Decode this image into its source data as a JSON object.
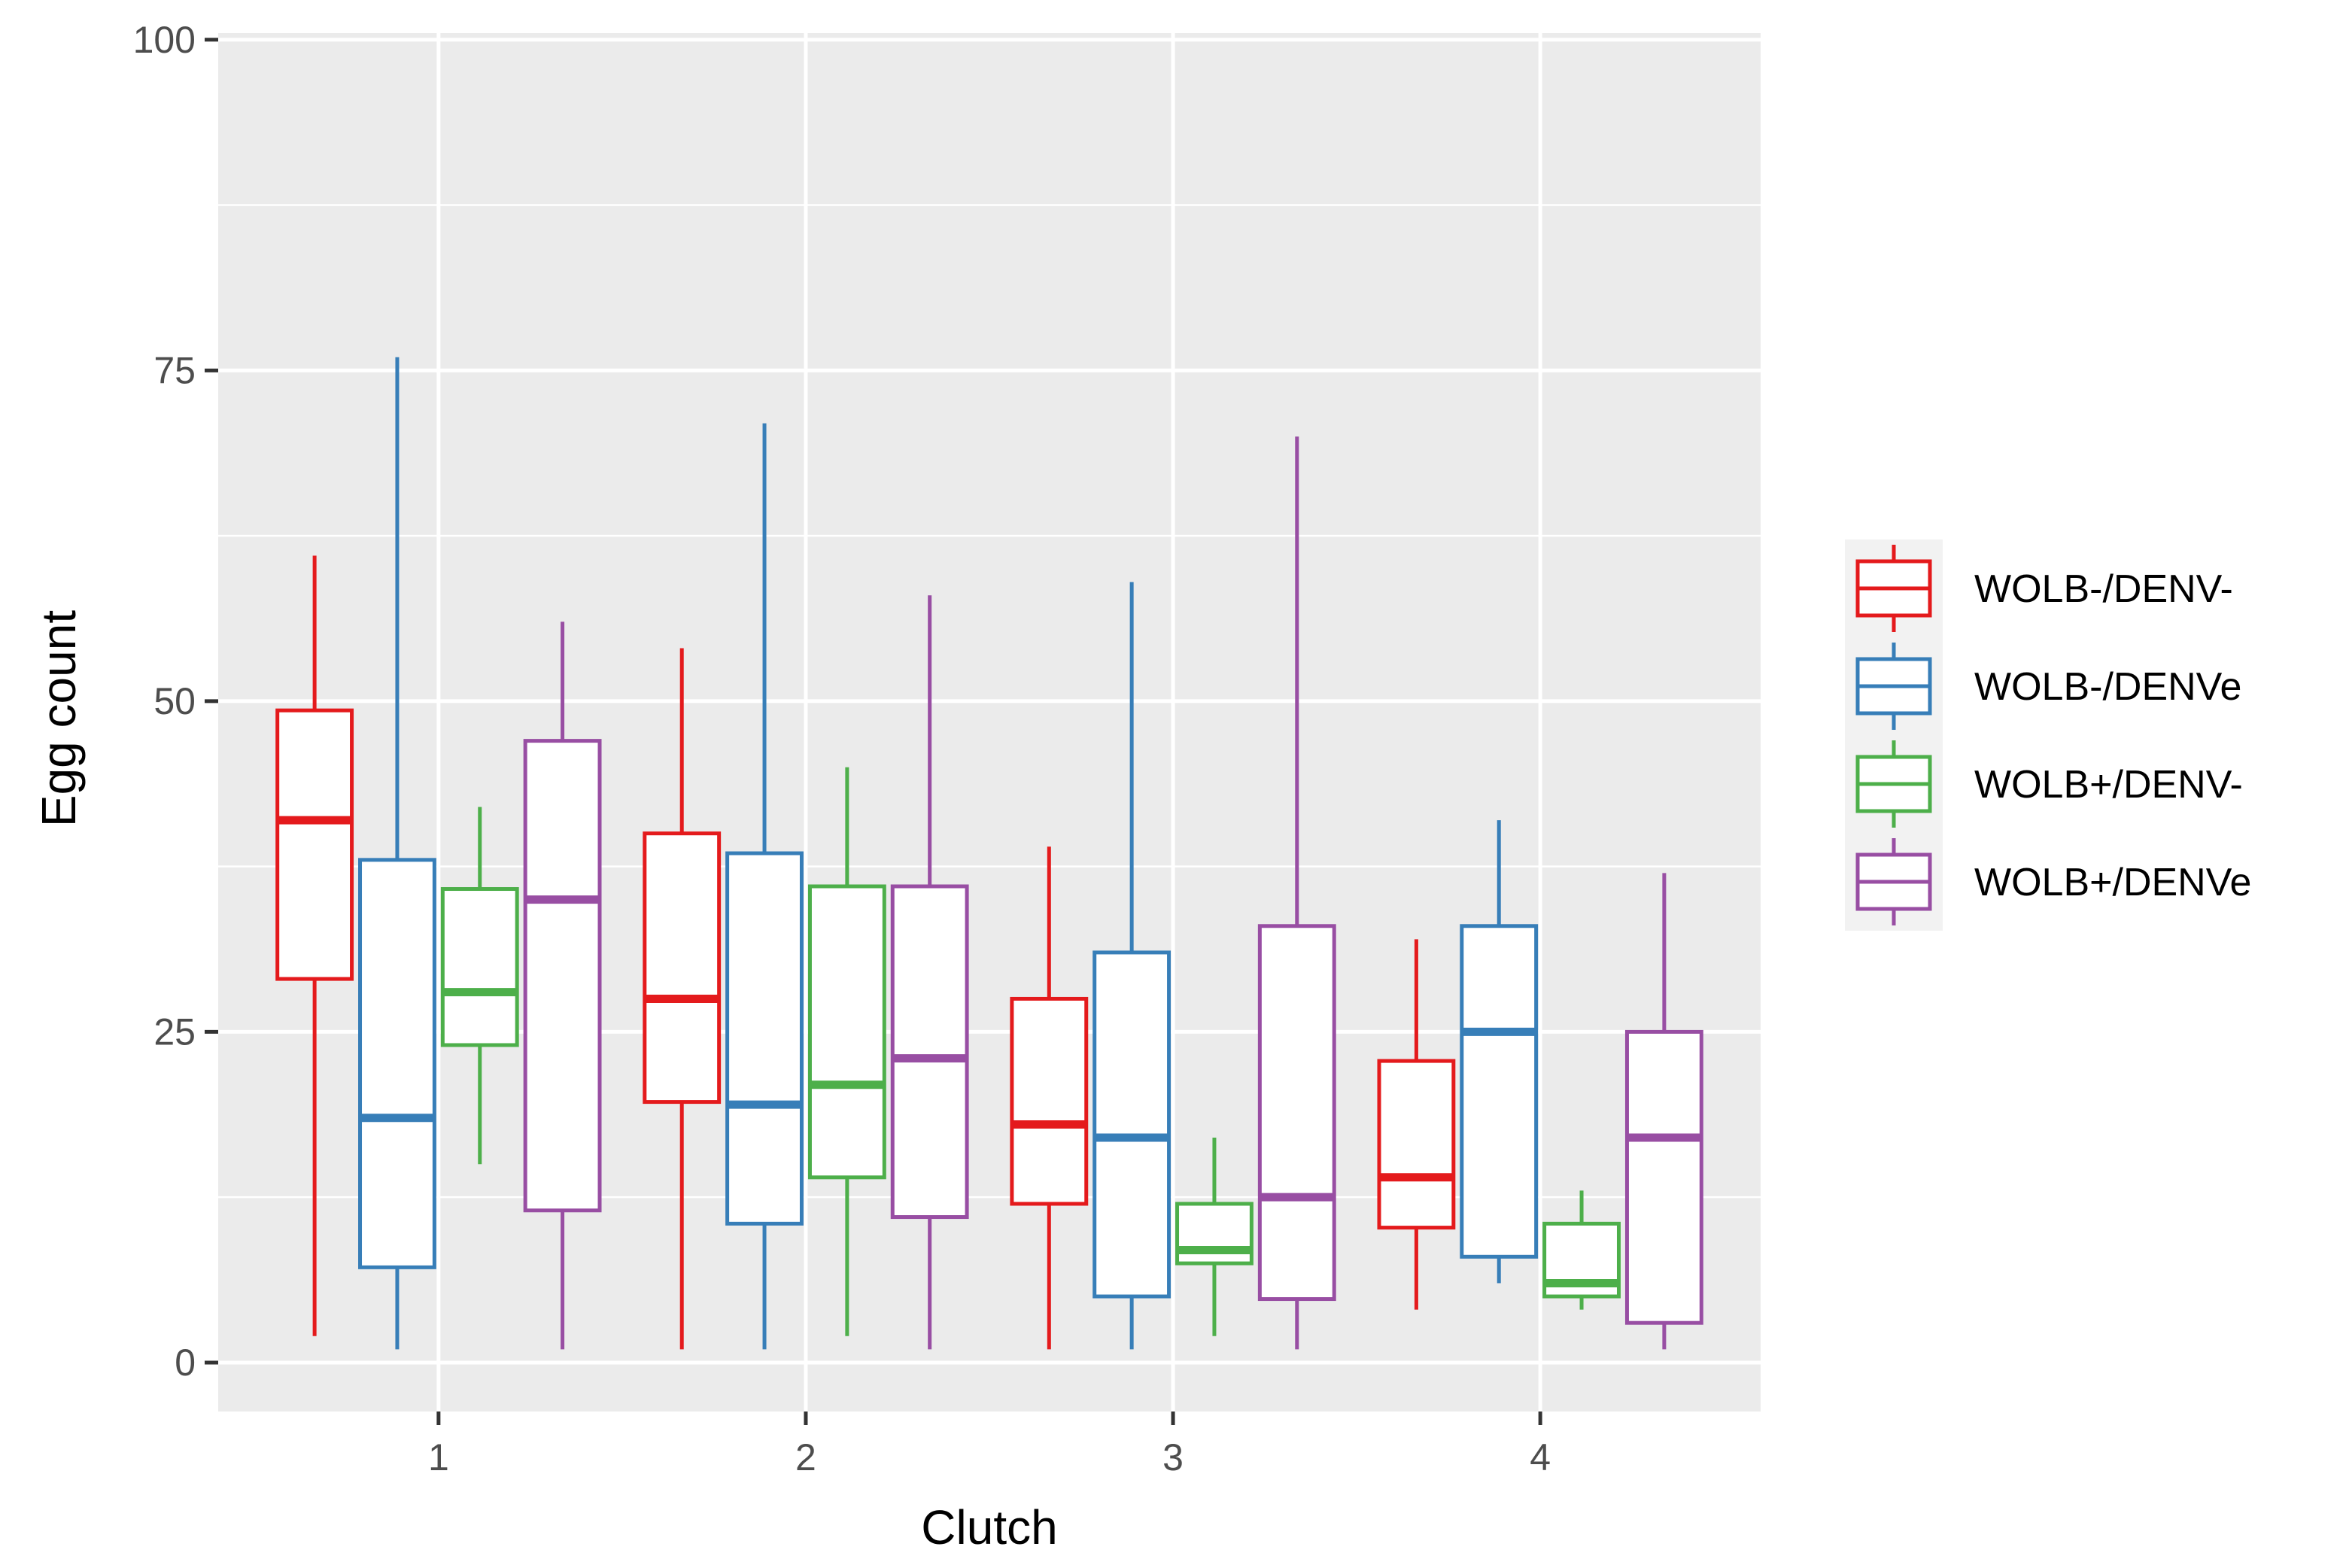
{
  "chart_data": {
    "type": "boxplot",
    "xlabel": "Clutch",
    "ylabel": "Egg count",
    "categories": [
      "1",
      "2",
      "3",
      "4"
    ],
    "ylim": [
      -3.7,
      100.5
    ],
    "yticks": [
      0,
      25,
      50,
      75,
      100
    ],
    "grid": true,
    "legend_position": "right",
    "series": [
      {
        "name": "WOLB-/DENV-",
        "color": "#e41a1c",
        "boxes": [
          {
            "min": 2,
            "q1": 29,
            "median": 41,
            "q3": 49.3,
            "max": 61
          },
          {
            "min": 1,
            "q1": 19.7,
            "median": 27.5,
            "q3": 40,
            "max": 54
          },
          {
            "min": 1,
            "q1": 12,
            "median": 18,
            "q3": 27.5,
            "max": 39
          },
          {
            "min": 4,
            "q1": 10.2,
            "median": 14,
            "q3": 22.8,
            "max": 32
          }
        ]
      },
      {
        "name": "WOLB-/DENVe",
        "color": "#377eb8",
        "boxes": [
          {
            "min": 1,
            "q1": 7.2,
            "median": 18.5,
            "q3": 38,
            "max": 76
          },
          {
            "min": 1,
            "q1": 10.5,
            "median": 19.5,
            "q3": 38.5,
            "max": 71
          },
          {
            "min": 1,
            "q1": 5,
            "median": 17,
            "q3": 31,
            "max": 59
          },
          {
            "min": 6,
            "q1": 8,
            "median": 25,
            "q3": 33,
            "max": 41
          }
        ]
      },
      {
        "name": "WOLB+/DENV-",
        "color": "#4daf4a",
        "boxes": [
          {
            "min": 15,
            "q1": 24,
            "median": 28,
            "q3": 35.8,
            "max": 42
          },
          {
            "min": 2,
            "q1": 14,
            "median": 21,
            "q3": 36,
            "max": 45
          },
          {
            "min": 2,
            "q1": 7.5,
            "median": 8.5,
            "q3": 12,
            "max": 17
          },
          {
            "min": 4,
            "q1": 5,
            "median": 6,
            "q3": 10.5,
            "max": 13
          }
        ]
      },
      {
        "name": "WOLB+/DENVe",
        "color": "#984ea3",
        "boxes": [
          {
            "min": 1,
            "q1": 11.5,
            "median": 35,
            "q3": 47,
            "max": 56
          },
          {
            "min": 1,
            "q1": 11,
            "median": 23,
            "q3": 36,
            "max": 58
          },
          {
            "min": 1,
            "q1": 4.8,
            "median": 12.5,
            "q3": 33,
            "max": 70
          },
          {
            "min": 1,
            "q1": 3,
            "median": 17,
            "q3": 25,
            "max": 37
          }
        ]
      }
    ]
  }
}
